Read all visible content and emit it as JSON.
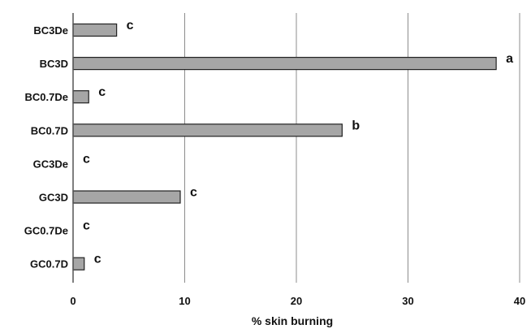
{
  "chart_data": {
    "type": "bar",
    "orientation": "horizontal",
    "title": "",
    "xlabel": "% skin burning",
    "ylabel": "",
    "xlim": [
      0,
      40
    ],
    "x_ticks": [
      "0",
      "10",
      "20",
      "30",
      "40"
    ],
    "grid": "vertical",
    "legend": "none",
    "bar_color": "#a6a6a6",
    "bar_edge_color": "#222222",
    "categories": [
      "BC3De",
      "BC3D",
      "BC0.7De",
      "BC0.7D",
      "GC3De",
      "GC3D",
      "GC0.7De",
      "GC0.7D"
    ],
    "values": [
      3.9,
      37.9,
      1.4,
      24.1,
      0,
      9.6,
      0,
      1.0
    ],
    "annotations": [
      "c",
      "a",
      "c",
      "b",
      "c",
      "c",
      "c",
      "c"
    ]
  }
}
